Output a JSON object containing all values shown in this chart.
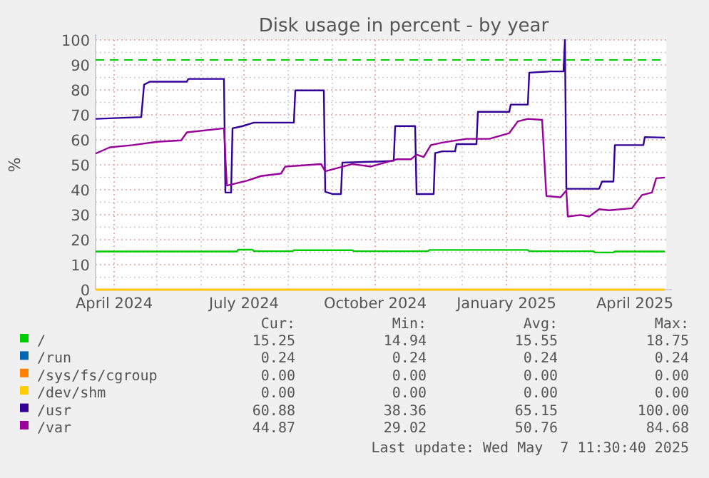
{
  "chart_data": {
    "type": "line",
    "title": "Disk usage in percent - by year",
    "ylabel": "%",
    "xlim": [
      "2024-03-19",
      "2025-04-23"
    ],
    "xticks": [
      {
        "value": "2024-04-01",
        "label": "April 2024"
      },
      {
        "value": "2024-05-01",
        "label": null
      },
      {
        "value": "2024-06-01",
        "label": null
      },
      {
        "value": "2024-07-01",
        "label": "July 2024"
      },
      {
        "value": "2024-08-01",
        "label": null
      },
      {
        "value": "2024-09-01",
        "label": null
      },
      {
        "value": "2024-10-01",
        "label": "October 2024"
      },
      {
        "value": "2024-11-01",
        "label": null
      },
      {
        "value": "2024-12-01",
        "label": null
      },
      {
        "value": "2025-01-01",
        "label": "January 2025"
      },
      {
        "value": "2025-02-01",
        "label": null
      },
      {
        "value": "2025-03-01",
        "label": null
      },
      {
        "value": "2025-04-01",
        "label": "April 2025"
      }
    ],
    "ylim": [
      0,
      100
    ],
    "yticks": [
      0,
      {
        "value": 5,
        "label": null
      },
      10,
      {
        "value": 15,
        "label": null
      },
      20,
      {
        "value": 25,
        "label": null
      },
      30,
      {
        "value": 35,
        "label": null
      },
      40,
      {
        "value": 45,
        "label": null
      },
      50,
      {
        "value": 55,
        "label": null
      },
      60,
      {
        "value": 65,
        "label": null
      },
      70,
      {
        "value": 75,
        "label": null
      },
      80,
      {
        "value": 85,
        "label": null
      },
      90,
      {
        "value": 95,
        "label": null
      },
      100
    ],
    "grid": true,
    "legend": "bottom",
    "marker": "none",
    "line_style": "solid",
    "ref_lines": [
      {
        "axis": "y",
        "value": 92,
        "color": "#00cc00",
        "line_style": "dashed"
      }
    ],
    "series": [
      {
        "name": "/",
        "color": "#00cc00",
        "x": [
          "2024-03-19",
          "2024-06-26",
          "2024-06-27",
          "2024-07-07",
          "2024-07-08",
          "2024-08-04",
          "2024-08-05",
          "2024-09-15",
          "2024-09-16",
          "2024-11-07",
          "2024-11-08",
          "2025-01-16",
          "2025-01-17",
          "2025-03-03",
          "2025-03-04",
          "2025-03-17",
          "2025-03-18",
          "2025-04-22"
        ],
        "values": [
          15.3,
          15.3,
          16.0,
          16.0,
          15.4,
          15.4,
          15.8,
          15.8,
          15.4,
          15.4,
          15.9,
          15.9,
          15.4,
          15.4,
          14.9,
          14.9,
          15.3,
          15.3
        ]
      },
      {
        "name": "/run",
        "color": "#0066b3"
      },
      {
        "name": "/sys/fs/cgroup",
        "color": "#ff8000",
        "x": [
          "2024-03-19",
          "2025-04-22"
        ],
        "values": [
          0,
          0
        ]
      },
      {
        "name": "/dev/shm",
        "color": "#ffcc00",
        "x": [
          "2024-03-19",
          "2025-04-22"
        ],
        "values": [
          0,
          0
        ]
      },
      {
        "name": "/usr",
        "color": "#330099",
        "x": [
          "2024-03-19",
          "2024-04-20",
          "2024-04-22",
          "2024-04-26",
          "2024-05-22",
          "2024-05-23",
          "2024-06-17",
          "2024-06-18",
          "2024-06-22",
          "2024-06-23",
          "2024-06-30",
          "2024-07-08",
          "2024-08-05",
          "2024-08-06",
          "2024-08-26",
          "2024-08-27",
          "2024-09-01",
          "2024-09-07",
          "2024-09-08",
          "2024-10-03",
          "2024-10-14",
          "2024-10-15",
          "2024-10-29",
          "2024-10-30",
          "2024-11-11",
          "2024-11-12",
          "2024-11-17",
          "2024-11-26",
          "2024-11-27",
          "2024-12-11",
          "2024-12-12",
          "2025-01-03",
          "2025-01-04",
          "2025-01-16",
          "2025-01-17",
          "2025-02-01",
          "2025-02-10",
          "2025-02-11",
          "2025-02-12",
          "2025-03-07",
          "2025-03-09",
          "2025-03-17",
          "2025-03-18",
          "2025-04-07",
          "2025-04-08",
          "2025-04-22"
        ],
        "values": [
          68.4,
          69.1,
          82.1,
          83.3,
          83.3,
          84.4,
          84.4,
          38.9,
          38.9,
          64.6,
          65.5,
          66.9,
          66.9,
          79.8,
          79.8,
          39.2,
          38.3,
          38.3,
          50.9,
          51.3,
          51.6,
          65.5,
          65.5,
          38.3,
          38.3,
          54.7,
          55.4,
          55.4,
          58.3,
          58.3,
          71.2,
          71.2,
          74.1,
          74.1,
          86.9,
          87.4,
          87.4,
          100,
          40.4,
          40.4,
          43.3,
          43.3,
          57.9,
          57.9,
          61.1,
          60.9
        ]
      },
      {
        "name": "/var",
        "color": "#990099",
        "x": [
          "2024-03-19",
          "2024-03-29",
          "2024-04-14",
          "2024-05-01",
          "2024-05-18",
          "2024-05-22",
          "2024-06-17",
          "2024-06-19",
          "2024-07-03",
          "2024-07-13",
          "2024-07-27",
          "2024-07-30",
          "2024-08-24",
          "2024-08-27",
          "2024-09-15",
          "2024-09-28",
          "2024-10-16",
          "2024-10-26",
          "2024-10-30",
          "2024-11-04",
          "2024-11-09",
          "2024-11-17",
          "2024-12-04",
          "2024-12-20",
          "2025-01-03",
          "2025-01-09",
          "2025-01-16",
          "2025-01-26",
          "2025-01-29",
          "2025-02-08",
          "2025-02-12",
          "2025-02-13",
          "2025-02-22",
          "2025-02-28",
          "2025-03-07",
          "2025-03-14",
          "2025-03-30",
          "2025-04-06",
          "2025-04-13",
          "2025-04-16",
          "2025-04-22"
        ],
        "values": [
          54.5,
          57.0,
          57.9,
          59.2,
          59.8,
          63.0,
          64.6,
          41.7,
          43.6,
          45.5,
          46.5,
          49.3,
          50.3,
          47.4,
          50.3,
          49.3,
          52.2,
          52.2,
          54.1,
          53.1,
          57.9,
          58.9,
          60.4,
          60.4,
          62.7,
          67.4,
          68.4,
          68.0,
          37.5,
          37.0,
          39.8,
          29.3,
          29.9,
          29.3,
          32.2,
          31.8,
          32.6,
          37.9,
          38.9,
          44.6,
          44.9
        ]
      }
    ],
    "annotations": [
      "Cur:",
      "Min:",
      "Avg:",
      "Max:",
      "15.25",
      "14.94",
      "15.55",
      "18.75",
      "0.24",
      "0.24",
      "0.24",
      "0.24",
      "0.00",
      "0.00",
      "0.00",
      "0.00",
      "0.00",
      "0.00",
      "0.00",
      "0.00",
      "60.88",
      "38.36",
      "65.15",
      "100.00",
      "44.87",
      "29.02",
      "50.76",
      "84.68",
      "Last update: Wed May  7 11:30:40 2025"
    ]
  }
}
